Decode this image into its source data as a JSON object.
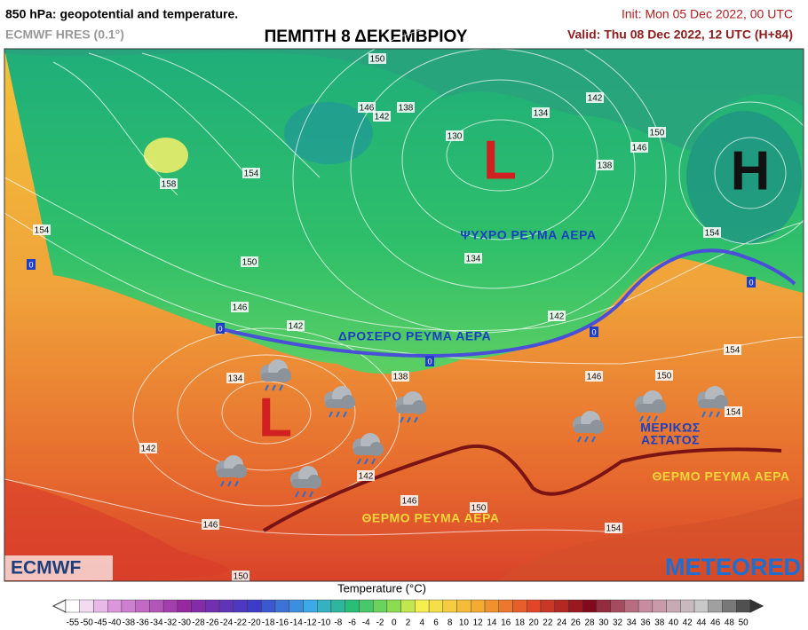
{
  "header": {
    "title": "850 hPa: geopotential and temperature.",
    "model": "ECMWF HRES (0.1°)",
    "headline": "ΠΕΜΠΤΗ 8 ΔΕΚΕΜΒΡΙΟΥ",
    "init": "Init: Mon 05 Dec 2022, 00 UTC",
    "valid": "Valid: Thu 08 Dec 2022, 12 UTC (H+84)"
  },
  "map": {
    "isobar_labels": [
      150,
      146,
      142,
      138,
      134,
      130,
      138,
      142,
      146,
      150,
      154,
      158,
      154,
      150,
      134,
      146,
      142,
      142,
      154,
      134,
      138,
      146,
      150,
      154,
      142,
      142,
      146,
      150,
      154,
      146,
      150,
      154
    ],
    "zero_isotherm_labels": [
      0,
      0,
      0,
      0,
      0
    ],
    "pressure_centers": [
      "L",
      "H",
      "L"
    ],
    "annotations": [
      "ΨΥΧΡΟ ΡΕΥΜΑ ΑΕΡΑ",
      "ΔΡΟΣΕΡΟ ΡΕΥΜΑ ΑΕΡΑ",
      "ΘΕΡΜΟ ΡΕΥΜΑ ΑΕΡΑ",
      "ΘΕΡΜΟ ΡΕΥΜΑ ΑΕΡΑ",
      "ΜΕΡΙΚΩΣ",
      "ΑΣΤΑΤΟΣ"
    ],
    "logos": [
      "ECMWF",
      "METEORED"
    ]
  },
  "legend": {
    "title": "Temperature (°C)",
    "ticks": [
      -55,
      -50,
      -45,
      -40,
      -38,
      -36,
      -34,
      -32,
      -30,
      -28,
      -26,
      -24,
      -22,
      -20,
      -18,
      -16,
      -14,
      -12,
      -10,
      -8,
      -6,
      -4,
      -2,
      0,
      2,
      4,
      6,
      8,
      10,
      12,
      14,
      16,
      18,
      20,
      22,
      24,
      26,
      28,
      30,
      32,
      34,
      36,
      38,
      40,
      42,
      44,
      46,
      48,
      50
    ]
  }
}
